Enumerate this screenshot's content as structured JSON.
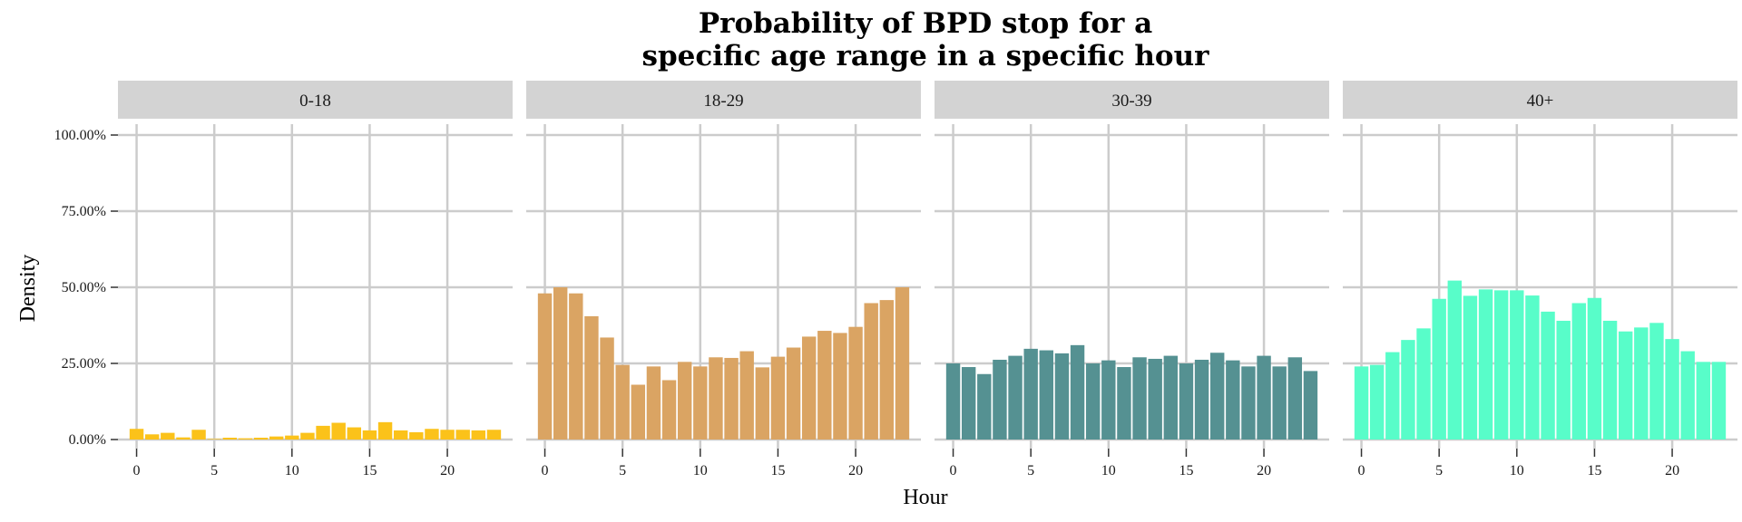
{
  "chart_data": {
    "type": "bar",
    "title_line1": "Probability of BPD stop for a",
    "title_line2": "specific age range in a specific hour",
    "xlabel": "Hour",
    "ylabel": "Density",
    "ylim": [
      0,
      1
    ],
    "y_ticks": [
      "0.00%",
      "25.00%",
      "50.00%",
      "75.00%",
      "100.00%"
    ],
    "y_tick_values": [
      0,
      0.25,
      0.5,
      0.75,
      1.0
    ],
    "x_ticks": [
      "0",
      "5",
      "10",
      "15",
      "20"
    ],
    "x_tick_values": [
      0,
      5,
      10,
      15,
      20
    ],
    "hours": [
      0,
      1,
      2,
      3,
      4,
      5,
      6,
      7,
      8,
      9,
      10,
      11,
      12,
      13,
      14,
      15,
      16,
      17,
      18,
      19,
      20,
      21,
      22,
      23
    ],
    "grid": true,
    "legend": "none",
    "panels": [
      {
        "label": "0-18",
        "color": "#FBC21A",
        "values": [
          0.035,
          0.017,
          0.022,
          0.007,
          0.032,
          0.002,
          0.006,
          0.004,
          0.006,
          0.01,
          0.013,
          0.022,
          0.045,
          0.055,
          0.04,
          0.03,
          0.057,
          0.03,
          0.024,
          0.035,
          0.032,
          0.032,
          0.03,
          0.032
        ]
      },
      {
        "label": "18-29",
        "color": "#DAA463",
        "values": [
          0.48,
          0.5,
          0.48,
          0.405,
          0.335,
          0.245,
          0.18,
          0.24,
          0.195,
          0.255,
          0.24,
          0.27,
          0.268,
          0.29,
          0.237,
          0.272,
          0.302,
          0.338,
          0.357,
          0.35,
          0.37,
          0.448,
          0.458,
          0.5
        ]
      },
      {
        "label": "30-39",
        "color": "#559192",
        "values": [
          0.25,
          0.238,
          0.215,
          0.262,
          0.275,
          0.298,
          0.293,
          0.283,
          0.31,
          0.25,
          0.26,
          0.238,
          0.27,
          0.265,
          0.275,
          0.25,
          0.262,
          0.285,
          0.26,
          0.24,
          0.275,
          0.24,
          0.27,
          0.225
        ]
      },
      {
        "label": "40+",
        "color": "#58FDC9",
        "values": [
          0.24,
          0.245,
          0.287,
          0.327,
          0.365,
          0.462,
          0.522,
          0.472,
          0.493,
          0.49,
          0.49,
          0.473,
          0.42,
          0.39,
          0.448,
          0.465,
          0.39,
          0.355,
          0.368,
          0.383,
          0.33,
          0.29,
          0.255,
          0.255
        ]
      }
    ]
  }
}
